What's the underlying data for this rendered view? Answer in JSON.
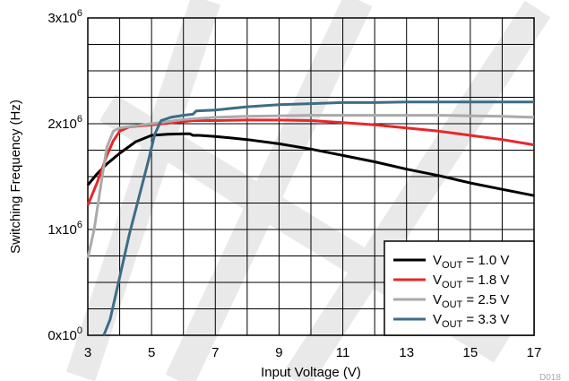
{
  "chart_data": {
    "type": "line",
    "xlabel": "Input Voltage (V)",
    "ylabel": "Switching Frequency (Hz)",
    "xlim": [
      3,
      17
    ],
    "ylim": [
      0,
      3000000
    ],
    "x_ticks": [
      3,
      5,
      7,
      9,
      11,
      13,
      15,
      17
    ],
    "y_ticks": [
      {
        "value": 0,
        "base": "0x10",
        "exp": "0"
      },
      {
        "value": 1000000,
        "base": "1x10",
        "exp": "6"
      },
      {
        "value": 2000000,
        "base": "2x10",
        "exp": "6"
      },
      {
        "value": 3000000,
        "base": "3x10",
        "exp": "6"
      }
    ],
    "grid": true,
    "legend_position": "bottom-right",
    "figure_code": "D018",
    "series": [
      {
        "label_main": "V",
        "label_sub": "OUT",
        "label_rest": " = 1.0 V",
        "color": "#000000",
        "points": [
          [
            3,
            1420000
          ],
          [
            3.3,
            1530000
          ],
          [
            3.6,
            1620000
          ],
          [
            4,
            1720000
          ],
          [
            4.5,
            1830000
          ],
          [
            5,
            1890000
          ],
          [
            5.5,
            1900000
          ],
          [
            6,
            1905000
          ],
          [
            6.2,
            1905000
          ],
          [
            6.3,
            1890000
          ],
          [
            6.5,
            1890000
          ],
          [
            7,
            1880000
          ],
          [
            8,
            1850000
          ],
          [
            9,
            1810000
          ],
          [
            10,
            1760000
          ],
          [
            11,
            1700000
          ],
          [
            12,
            1640000
          ],
          [
            13,
            1570000
          ],
          [
            14,
            1510000
          ],
          [
            15,
            1440000
          ],
          [
            16,
            1380000
          ],
          [
            17,
            1320000
          ]
        ]
      },
      {
        "label_main": "V",
        "label_sub": "OUT",
        "label_rest": " = 1.8 V",
        "color": "#e8262a",
        "points": [
          [
            3,
            1230000
          ],
          [
            3.3,
            1450000
          ],
          [
            3.6,
            1700000
          ],
          [
            3.8,
            1840000
          ],
          [
            4,
            1930000
          ],
          [
            4.3,
            1970000
          ],
          [
            5,
            1990000
          ],
          [
            6,
            2020000
          ],
          [
            6.3,
            2030000
          ],
          [
            7,
            2030000
          ],
          [
            8,
            2035000
          ],
          [
            9,
            2035000
          ],
          [
            10,
            2030000
          ],
          [
            11,
            2010000
          ],
          [
            12,
            1990000
          ],
          [
            13,
            1960000
          ],
          [
            14,
            1930000
          ],
          [
            15,
            1890000
          ],
          [
            16,
            1850000
          ],
          [
            17,
            1800000
          ]
        ]
      },
      {
        "label_main": "V",
        "label_sub": "OUT",
        "label_rest": " = 2.5 V",
        "color": "#aaaaaa",
        "points": [
          [
            3,
            730000
          ],
          [
            3.2,
            1000000
          ],
          [
            3.4,
            1400000
          ],
          [
            3.6,
            1780000
          ],
          [
            3.8,
            1930000
          ],
          [
            4,
            1960000
          ],
          [
            5,
            2000000
          ],
          [
            6,
            2040000
          ],
          [
            7,
            2060000
          ],
          [
            8,
            2070000
          ],
          [
            10,
            2080000
          ],
          [
            12,
            2080000
          ],
          [
            14,
            2080000
          ],
          [
            16,
            2070000
          ],
          [
            17,
            2060000
          ]
        ]
      },
      {
        "label_main": "V",
        "label_sub": "OUT",
        "label_rest": " = 3.3 V",
        "color": "#3d6d85",
        "points": [
          [
            3.5,
            0
          ],
          [
            3.7,
            150000
          ],
          [
            4,
            550000
          ],
          [
            4.3,
            950000
          ],
          [
            4.6,
            1300000
          ],
          [
            4.9,
            1650000
          ],
          [
            5.1,
            1900000
          ],
          [
            5.3,
            2030000
          ],
          [
            5.6,
            2060000
          ],
          [
            6,
            2080000
          ],
          [
            6.3,
            2090000
          ],
          [
            6.4,
            2120000
          ],
          [
            7,
            2130000
          ],
          [
            8,
            2160000
          ],
          [
            9,
            2180000
          ],
          [
            10,
            2190000
          ],
          [
            11,
            2200000
          ],
          [
            12,
            2200000
          ],
          [
            13,
            2205000
          ],
          [
            14,
            2205000
          ],
          [
            15,
            2205000
          ],
          [
            16,
            2205000
          ],
          [
            17,
            2205000
          ]
        ]
      }
    ]
  }
}
